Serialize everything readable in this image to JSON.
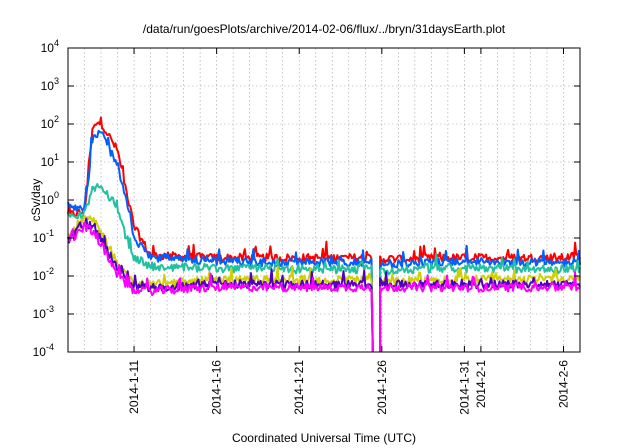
{
  "chart_data": {
    "type": "line",
    "title": "/data/run/goesPlots/archive/2014-02-06/flux/../bryn/31daysEarth.plot",
    "xlabel": "Coordinated Universal Time (UTC)",
    "ylabel": "cSv/day",
    "yscale": "log",
    "ylim": [
      0.0001,
      10000
    ],
    "xlim": [
      "2014-01-07",
      "2014-02-07"
    ],
    "grid": true,
    "legend": "none",
    "x_ticks": [
      "2014-1-11",
      "2014-1-16",
      "2014-1-21",
      "2014-1-26",
      "2014-1-31",
      "2014-2-1",
      "2014-2-6"
    ],
    "y_ticks": [
      {
        "value": 0.0001,
        "base": "10",
        "exp": "-4"
      },
      {
        "value": 0.001,
        "base": "10",
        "exp": "-3"
      },
      {
        "value": 0.01,
        "base": "10",
        "exp": "-2"
      },
      {
        "value": 0.1,
        "base": "10",
        "exp": "-1"
      },
      {
        "value": 1,
        "base": "10",
        "exp": "0"
      },
      {
        "value": 10,
        "base": "10",
        "exp": "1"
      },
      {
        "value": 100,
        "base": "10",
        "exp": "2"
      },
      {
        "value": 1000,
        "base": "10",
        "exp": "3"
      },
      {
        "value": 10000,
        "base": "10",
        "exp": "4"
      }
    ],
    "series": [
      {
        "color": "#ff0000",
        "points": [
          [
            "2014-01-07",
            0.4
          ],
          [
            "2014-01-08",
            0.5
          ],
          [
            "2014-01-08T12",
            80
          ],
          [
            "2014-01-09",
            110
          ],
          [
            "2014-01-10",
            20
          ],
          [
            "2014-01-10T12",
            2
          ],
          [
            "2014-01-11",
            0.2
          ],
          [
            "2014-01-12",
            0.035
          ],
          [
            "2014-01-16",
            0.03
          ],
          [
            "2014-01-21",
            0.03
          ],
          [
            "2014-01-25",
            0.03
          ],
          [
            "2014-01-26",
            0.028
          ],
          [
            "2014-01-31",
            0.03
          ],
          [
            "2014-02-06",
            0.03
          ],
          [
            "2014-02-07",
            0.035
          ]
        ]
      },
      {
        "color": "#0060ff",
        "points": [
          [
            "2014-01-07",
            0.8
          ],
          [
            "2014-01-08",
            0.5
          ],
          [
            "2014-01-08T12",
            40
          ],
          [
            "2014-01-09",
            60
          ],
          [
            "2014-01-10",
            8
          ],
          [
            "2014-01-10T12",
            1
          ],
          [
            "2014-01-11",
            0.1
          ],
          [
            "2014-01-12",
            0.03
          ],
          [
            "2014-01-16",
            0.025
          ],
          [
            "2014-01-21",
            0.022
          ],
          [
            "2014-01-25",
            0.024
          ],
          [
            "2014-01-26",
            0.02
          ],
          [
            "2014-01-31",
            0.024
          ],
          [
            "2014-02-06",
            0.022
          ],
          [
            "2014-02-07",
            0.025
          ]
        ]
      },
      {
        "color": "#20c0a0",
        "points": [
          [
            "2014-01-07",
            0.4
          ],
          [
            "2014-01-08",
            0.4
          ],
          [
            "2014-01-08T12",
            2
          ],
          [
            "2014-01-09",
            2.5
          ],
          [
            "2014-01-10",
            0.6
          ],
          [
            "2014-01-10T12",
            0.1
          ],
          [
            "2014-01-11",
            0.03
          ],
          [
            "2014-01-12",
            0.018
          ],
          [
            "2014-01-16",
            0.016
          ],
          [
            "2014-01-21",
            0.015
          ],
          [
            "2014-01-25",
            0.015
          ],
          [
            "2014-01-26",
            0.014
          ],
          [
            "2014-01-31",
            0.016
          ],
          [
            "2014-02-06",
            0.015
          ],
          [
            "2014-02-07",
            0.016
          ]
        ]
      },
      {
        "color": "#d0d000",
        "points": [
          [
            "2014-01-07",
            0.1
          ],
          [
            "2014-01-08",
            0.3
          ],
          [
            "2014-01-08T12",
            0.3
          ],
          [
            "2014-01-09",
            0.15
          ],
          [
            "2014-01-10",
            0.02
          ],
          [
            "2014-01-11",
            0.006
          ],
          [
            "2014-01-12",
            0.006
          ],
          [
            "2014-01-16",
            0.008
          ],
          [
            "2014-01-21",
            0.008
          ],
          [
            "2014-01-25",
            0.008
          ],
          [
            "2014-01-26",
            0.007
          ],
          [
            "2014-01-31",
            0.008
          ],
          [
            "2014-02-06",
            0.008
          ],
          [
            "2014-02-07",
            0.008
          ]
        ]
      },
      {
        "color": "#5000c0",
        "points": [
          [
            "2014-01-07",
            0.09
          ],
          [
            "2014-01-08",
            0.25
          ],
          [
            "2014-01-08T12",
            0.2
          ],
          [
            "2014-01-09",
            0.1
          ],
          [
            "2014-01-10",
            0.015
          ],
          [
            "2014-01-11",
            0.005
          ],
          [
            "2014-01-12",
            0.005
          ],
          [
            "2014-01-16",
            0.006
          ],
          [
            "2014-01-21",
            0.006
          ],
          [
            "2014-01-25",
            0.006
          ],
          [
            "2014-01-26",
            0.006
          ],
          [
            "2014-01-31",
            0.006
          ],
          [
            "2014-02-06",
            0.006
          ],
          [
            "2014-02-07",
            0.006
          ]
        ]
      },
      {
        "color": "#ff00ff",
        "points": [
          [
            "2014-01-07",
            0.07
          ],
          [
            "2014-01-08",
            0.2
          ],
          [
            "2014-01-08T12",
            0.15
          ],
          [
            "2014-01-09",
            0.07
          ],
          [
            "2014-01-10",
            0.01
          ],
          [
            "2014-01-11",
            0.004
          ],
          [
            "2014-01-12",
            0.004
          ],
          [
            "2014-01-16",
            0.005
          ],
          [
            "2014-01-21",
            0.005
          ],
          [
            "2014-01-25",
            0.005
          ],
          [
            "2014-01-26",
            0.005
          ],
          [
            "2014-01-31",
            0.005
          ],
          [
            "2014-02-06",
            0.005
          ],
          [
            "2014-02-07",
            0.005
          ]
        ]
      }
    ],
    "gap": {
      "start": "2014-01-25T10",
      "end": "2014-01-25T20"
    }
  }
}
